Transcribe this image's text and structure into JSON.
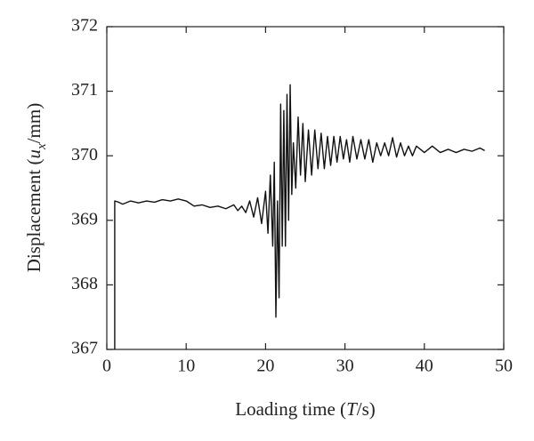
{
  "chart_data": {
    "type": "line",
    "xlabel": [
      "Loading time (",
      "T",
      "/s)"
    ],
    "ylabel": [
      "Displacement (",
      "u",
      "x",
      "/mm)"
    ],
    "xlim": [
      0,
      50
    ],
    "xticks": [
      0,
      10,
      20,
      30,
      40,
      50
    ],
    "ylim": [
      367,
      372
    ],
    "yticks": [
      367,
      368,
      369,
      370,
      371,
      372
    ],
    "series": [
      {
        "color": "#111111",
        "x": [
          1.0,
          1.0,
          1.5,
          2,
          3,
          4,
          5,
          6,
          7,
          8,
          9,
          10,
          11,
          12,
          13,
          14,
          15,
          16,
          16.5,
          17,
          17.5,
          18,
          18.5,
          19,
          19.5,
          20,
          20.3,
          20.6,
          20.9,
          21.1,
          21.3,
          21.5,
          21.7,
          21.9,
          22.1,
          22.3,
          22.5,
          22.7,
          22.9,
          23.1,
          23.3,
          23.5,
          23.8,
          24.1,
          24.4,
          24.7,
          25.0,
          25.4,
          25.8,
          26.2,
          26.6,
          27.0,
          27.4,
          27.8,
          28.2,
          28.6,
          29.0,
          29.4,
          29.8,
          30.2,
          30.6,
          31.0,
          31.5,
          32,
          32.5,
          33,
          33.5,
          34,
          34.5,
          35,
          35.5,
          36,
          36.5,
          37,
          37.5,
          38,
          38.5,
          39,
          40,
          41,
          42,
          43,
          44,
          45,
          46,
          47,
          47.6
        ],
        "values": [
          367.0,
          369.3,
          369.28,
          369.25,
          369.3,
          369.27,
          369.3,
          369.28,
          369.32,
          369.3,
          369.33,
          369.3,
          369.22,
          369.24,
          369.2,
          369.22,
          369.18,
          369.24,
          369.15,
          369.22,
          369.12,
          369.3,
          369.05,
          369.35,
          368.95,
          369.45,
          368.8,
          369.7,
          368.6,
          369.9,
          367.5,
          369.3,
          367.8,
          370.8,
          368.6,
          370.7,
          368.6,
          370.95,
          369.0,
          371.1,
          369.4,
          370.2,
          369.5,
          370.6,
          369.7,
          370.5,
          369.6,
          370.4,
          369.7,
          370.4,
          369.8,
          370.35,
          369.8,
          370.3,
          369.85,
          370.3,
          369.9,
          370.3,
          369.95,
          370.25,
          369.9,
          370.3,
          369.95,
          370.25,
          369.95,
          370.25,
          369.9,
          370.2,
          370.0,
          370.2,
          370.0,
          370.28,
          369.98,
          370.2,
          370.0,
          370.15,
          370.0,
          370.15,
          370.05,
          370.15,
          370.05,
          370.1,
          370.05,
          370.1,
          370.07,
          370.12,
          370.08
        ]
      }
    ]
  }
}
